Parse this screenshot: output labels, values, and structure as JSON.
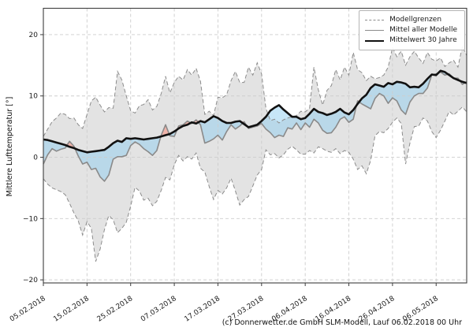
{
  "legend": {
    "items": [
      {
        "label": "Modellgrenzen",
        "style": "dashed-gray"
      },
      {
        "label": "Mittel aller Modelle",
        "style": "solid-gray"
      },
      {
        "label": "Mittelwert 30 Jahre",
        "style": "solid-black-thick"
      }
    ]
  },
  "caption": {
    "text": "(c) Donnerwetter.de GmbH SLM-Modell, Lauf 06.02.2018 00 Uhr"
  },
  "chart_data": {
    "type": "line",
    "title": "",
    "xlabel": "",
    "ylabel": "Mittlere Lufttemperatur [°]",
    "x_unit": "days since 05.02.2018 (daily values)",
    "x_tick_days": [
      0,
      10,
      20,
      30,
      40,
      50,
      60,
      70,
      80,
      90
    ],
    "x_tick_labels": [
      "05.02.2018",
      "15.02.2018",
      "25.02.2018",
      "07.03.2018",
      "17.03.2018",
      "27.03.2018",
      "06.04.2018",
      "16.04.2018",
      "26.04.2018",
      "06.05.2018"
    ],
    "y_ticks": [
      -20,
      -10,
      0,
      10,
      20
    ],
    "y_tick_labels": [
      "−20",
      "−10",
      "0",
      "10",
      "20"
    ],
    "ylim": [
      -20.5,
      24.3
    ],
    "grid": true,
    "legend_position": "upper right",
    "colors": {
      "grid": "#cdcdcd",
      "frame": "#3d3d3d",
      "envelope_line": "#8c8c8c",
      "model_mean_line": "#8a8a8a",
      "mean30_line": "#111111",
      "model_range_band": "#e3e3e3",
      "below_normal_fill": "rgba(143,205,239,0.5)",
      "above_normal_fill": "rgba(253,133,113,0.5)"
    },
    "series": [
      {
        "name": "Modellgrenzen (Maximum)",
        "style": "dashed",
        "values": [
          3.4,
          4.6,
          5.8,
          6.4,
          7.2,
          7.0,
          6.3,
          6.4,
          5.3,
          4.7,
          7.0,
          9.2,
          9.8,
          8.5,
          7.4,
          8.1,
          8.0,
          14.0,
          12.6,
          10.0,
          7.6,
          7.2,
          8.4,
          8.6,
          9.4,
          7.7,
          8.3,
          10.4,
          13.2,
          10.5,
          12.2,
          13.2,
          12.6,
          14.3,
          13.4,
          14.5,
          12.4,
          7.0,
          7.5,
          6.8,
          9.8,
          9.7,
          10.2,
          12.5,
          14.0,
          12.2,
          12.2,
          14.7,
          13.4,
          15.4,
          13.6,
          8.0,
          6.0,
          6.2,
          5.6,
          6.1,
          6.4,
          6.6,
          6.8,
          7.5,
          7.4,
          8.0,
          14.7,
          11.0,
          8.5,
          10.9,
          11.7,
          14.3,
          12.6,
          14.7,
          13.4,
          17.1,
          14.3,
          13.8,
          12.5,
          13.2,
          12.8,
          13.0,
          13.4,
          14.7,
          17.9,
          16.4,
          17.3,
          15.0,
          16.4,
          17.3,
          16.2,
          15.3,
          17.1,
          16.0,
          15.7,
          16.2,
          14.8,
          15.4,
          15.8,
          14.7,
          18.1,
          16.6
        ]
      },
      {
        "name": "Modellgrenzen (Minimum)",
        "style": "dashed",
        "values": [
          -3.5,
          -4.4,
          -5.0,
          -5.3,
          -5.6,
          -6.1,
          -7.5,
          -9.1,
          -10.4,
          -12.7,
          -10.5,
          -11.6,
          -17.0,
          -15.0,
          -11.8,
          -9.5,
          -10.2,
          -12.3,
          -11.6,
          -10.6,
          -8.0,
          -4.9,
          -5.5,
          -7.0,
          -6.7,
          -7.9,
          -7.2,
          -5.4,
          -3.3,
          -3.7,
          -1.2,
          0.3,
          -0.6,
          0.1,
          -0.3,
          0.7,
          -1.8,
          -2.4,
          -4.8,
          -6.9,
          -5.4,
          -6.0,
          -5.0,
          -3.4,
          -5.5,
          -7.8,
          -6.9,
          -6.4,
          -4.7,
          -2.9,
          -2.0,
          1.2,
          0.4,
          0.6,
          -0.1,
          0.4,
          1.3,
          1.8,
          1.2,
          0.5,
          0.5,
          1.1,
          0.7,
          1.7,
          1.4,
          1.0,
          0.8,
          1.4,
          0.6,
          1.1,
          0.8,
          -0.3,
          -2.0,
          -1.4,
          -2.7,
          -0.5,
          3.5,
          4.2,
          4.0,
          4.7,
          5.7,
          6.4,
          5.5,
          -1.1,
          2.3,
          5.0,
          5.1,
          6.4,
          5.9,
          4.2,
          3.2,
          4.4,
          5.9,
          7.5,
          6.9,
          7.5,
          8.2,
          7.4
        ]
      },
      {
        "name": "Mittel aller Modelle",
        "style": "solid",
        "values": [
          -1.1,
          0.4,
          1.4,
          1.0,
          1.3,
          1.5,
          2.6,
          1.8,
          0.2,
          -1.1,
          -0.8,
          -2.0,
          -1.8,
          -3.2,
          -3.9,
          -2.9,
          -0.3,
          0.1,
          0.1,
          0.3,
          1.9,
          2.5,
          2.1,
          1.4,
          0.9,
          0.3,
          1.1,
          3.6,
          5.3,
          3.5,
          3.4,
          5.1,
          5.3,
          5.9,
          5.5,
          6.1,
          5.3,
          2.3,
          2.6,
          3.0,
          3.6,
          2.8,
          4.2,
          5.3,
          4.6,
          5.1,
          5.8,
          4.7,
          4.9,
          5.1,
          5.5,
          4.6,
          4.0,
          3.2,
          3.6,
          3.4,
          4.8,
          4.6,
          5.6,
          4.5,
          5.6,
          4.9,
          6.2,
          5.6,
          4.4,
          3.9,
          4.0,
          4.9,
          6.2,
          6.6,
          5.7,
          6.2,
          9.2,
          8.7,
          8.3,
          7.9,
          9.6,
          10.4,
          10.0,
          8.8,
          9.7,
          9.2,
          7.7,
          7.0,
          9.0,
          10.0,
          10.4,
          10.4,
          11.3,
          13.4,
          13.6,
          13.9,
          13.4,
          13.6,
          12.9,
          12.9,
          11.9,
          12.3
        ]
      },
      {
        "name": "Mittelwert 30 Jahre",
        "style": "solid-thick",
        "values": [
          2.9,
          2.8,
          2.6,
          2.4,
          2.2,
          2.0,
          1.7,
          1.5,
          1.2,
          1.0,
          0.8,
          0.9,
          1.0,
          1.1,
          1.2,
          1.7,
          2.3,
          2.7,
          2.5,
          3.1,
          3.0,
          3.1,
          3.0,
          2.9,
          3.0,
          3.1,
          3.2,
          3.4,
          3.6,
          3.8,
          4.2,
          4.7,
          5.1,
          5.3,
          5.7,
          5.5,
          5.9,
          5.7,
          6.2,
          6.7,
          6.4,
          5.9,
          5.6,
          5.6,
          5.8,
          5.9,
          5.4,
          4.9,
          5.1,
          5.3,
          5.9,
          6.6,
          7.6,
          8.1,
          8.5,
          7.8,
          7.2,
          6.6,
          6.6,
          6.2,
          6.4,
          7.1,
          7.9,
          7.4,
          7.2,
          6.9,
          7.1,
          7.4,
          7.9,
          7.3,
          7.0,
          7.7,
          8.7,
          9.6,
          10.2,
          11.3,
          11.9,
          11.7,
          11.5,
          12.1,
          11.9,
          12.3,
          12.2,
          12.0,
          11.4,
          11.5,
          11.4,
          12.0,
          12.8,
          13.5,
          13.4,
          14.1,
          13.9,
          13.4,
          12.9,
          12.6,
          12.3,
          12.1
        ]
      }
    ],
    "fills": [
      {
        "name": "model_range_band",
        "between": [
          "Modellgrenzen (Maximum)",
          "Modellgrenzen (Minimum)"
        ]
      },
      {
        "name": "below_normal",
        "between": [
          "Mittelwert 30 Jahre",
          "Mittel aller Modelle"
        ],
        "where": "model < mean30"
      },
      {
        "name": "above_normal",
        "between": [
          "Mittel aller Modelle",
          "Mittelwert 30 Jahre"
        ],
        "where": "model > mean30"
      }
    ]
  }
}
